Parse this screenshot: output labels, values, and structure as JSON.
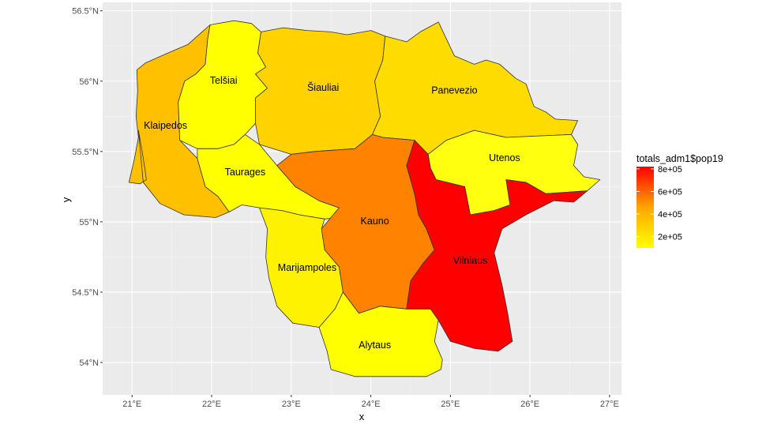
{
  "chart_data": {
    "type": "choropleth",
    "xlabel": "x",
    "ylabel": "y",
    "xlim": [
      20.63,
      27.15
    ],
    "ylim": [
      53.77,
      56.56
    ],
    "x_ticks": [
      {
        "value": 21,
        "label": "21°E"
      },
      {
        "value": 22,
        "label": "22°E"
      },
      {
        "value": 23,
        "label": "23°E"
      },
      {
        "value": 24,
        "label": "24°E"
      },
      {
        "value": 25,
        "label": "25°E"
      },
      {
        "value": 26,
        "label": "26°E"
      },
      {
        "value": 27,
        "label": "27°E"
      }
    ],
    "y_ticks": [
      {
        "value": 54.0,
        "label": "54°N"
      },
      {
        "value": 54.5,
        "label": "54.5°N"
      },
      {
        "value": 55.0,
        "label": "55°N"
      },
      {
        "value": 55.5,
        "label": "55.5°N"
      },
      {
        "value": 56.0,
        "label": "56°N"
      },
      {
        "value": 56.5,
        "label": "56.5°N"
      }
    ],
    "grid": true,
    "legend": {
      "title": "totals_adm1$pop19",
      "placement": "right",
      "min": 100000,
      "max": 820000,
      "colors": [
        "#ffff00",
        "#ffa500",
        "#ff0000"
      ],
      "ticks": [
        {
          "value": 200000,
          "label": "2e+05"
        },
        {
          "value": 400000,
          "label": "4e+05"
        },
        {
          "value": 600000,
          "label": "6e+05"
        },
        {
          "value": 800000,
          "label": "8e+05"
        }
      ]
    },
    "regions": [
      {
        "name": "Klaipedos",
        "fill": "#FFC000",
        "label_lon": 21.42,
        "label_lat": 55.68,
        "boundary": [
          [
            21.08,
            55.65
          ],
          [
            21.12,
            55.52
          ],
          [
            21.16,
            55.38
          ],
          [
            21.18,
            55.3
          ],
          [
            21.1,
            55.27
          ],
          [
            20.96,
            55.28
          ],
          [
            21.03,
            55.45
          ],
          [
            21.08,
            55.6
          ],
          [
            21.05,
            55.75
          ],
          [
            21.07,
            55.93
          ],
          [
            21.06,
            56.08
          ],
          [
            21.17,
            56.13
          ],
          [
            21.45,
            56.2
          ],
          [
            21.7,
            56.26
          ],
          [
            21.98,
            56.4
          ],
          [
            21.95,
            56.3
          ],
          [
            21.92,
            56.12
          ],
          [
            21.8,
            56.05
          ],
          [
            21.66,
            56.0
          ],
          [
            21.58,
            55.85
          ],
          [
            21.6,
            55.58
          ],
          [
            21.82,
            55.45
          ],
          [
            21.92,
            55.25
          ],
          [
            22.08,
            55.18
          ],
          [
            22.22,
            55.07
          ],
          [
            22.05,
            55.03
          ],
          [
            21.65,
            55.05
          ],
          [
            21.35,
            55.13
          ],
          [
            21.14,
            55.28
          ],
          [
            21.08,
            55.65
          ]
        ]
      },
      {
        "name": "Telšiai",
        "fill": "#FFFF00",
        "label_lon": 22.15,
        "label_lat": 56.0,
        "boundary": [
          [
            21.98,
            56.4
          ],
          [
            22.28,
            56.43
          ],
          [
            22.5,
            56.41
          ],
          [
            22.62,
            56.35
          ],
          [
            22.58,
            56.2
          ],
          [
            22.68,
            56.1
          ],
          [
            22.55,
            56.05
          ],
          [
            22.7,
            55.95
          ],
          [
            22.55,
            55.88
          ],
          [
            22.55,
            55.7
          ],
          [
            22.42,
            55.62
          ],
          [
            22.28,
            55.55
          ],
          [
            22.08,
            55.52
          ],
          [
            21.82,
            55.52
          ],
          [
            21.6,
            55.58
          ],
          [
            21.58,
            55.85
          ],
          [
            21.66,
            56.0
          ],
          [
            21.8,
            56.05
          ],
          [
            21.92,
            56.12
          ],
          [
            21.95,
            56.3
          ],
          [
            21.98,
            56.4
          ]
        ]
      },
      {
        "name": "Šiauliai",
        "fill": "#FFD200",
        "label_lon": 23.4,
        "label_lat": 55.95,
        "boundary": [
          [
            22.62,
            56.35
          ],
          [
            22.9,
            56.38
          ],
          [
            23.2,
            56.36
          ],
          [
            23.5,
            56.35
          ],
          [
            23.7,
            56.33
          ],
          [
            24.0,
            56.36
          ],
          [
            24.18,
            56.32
          ],
          [
            24.15,
            56.15
          ],
          [
            24.05,
            56.0
          ],
          [
            24.12,
            55.75
          ],
          [
            24.02,
            55.62
          ],
          [
            23.8,
            55.52
          ],
          [
            23.3,
            55.5
          ],
          [
            23.0,
            55.48
          ],
          [
            22.6,
            55.55
          ],
          [
            22.55,
            55.7
          ],
          [
            22.55,
            55.88
          ],
          [
            22.7,
            55.95
          ],
          [
            22.55,
            56.05
          ],
          [
            22.68,
            56.1
          ],
          [
            22.58,
            56.2
          ],
          [
            22.62,
            56.35
          ]
        ]
      },
      {
        "name": "Panevezio",
        "fill": "#FFDC00",
        "label_lon": 25.05,
        "label_lat": 55.93,
        "boundary": [
          [
            24.18,
            56.32
          ],
          [
            24.45,
            56.28
          ],
          [
            24.62,
            56.35
          ],
          [
            24.85,
            56.42
          ],
          [
            25.05,
            56.18
          ],
          [
            25.3,
            56.12
          ],
          [
            25.45,
            56.15
          ],
          [
            25.62,
            56.12
          ],
          [
            25.82,
            56.02
          ],
          [
            25.95,
            55.98
          ],
          [
            26.05,
            55.82
          ],
          [
            26.2,
            55.78
          ],
          [
            26.32,
            55.73
          ],
          [
            26.6,
            55.72
          ],
          [
            26.52,
            55.62
          ],
          [
            25.7,
            55.6
          ],
          [
            25.3,
            55.65
          ],
          [
            24.95,
            55.58
          ],
          [
            24.72,
            55.48
          ],
          [
            24.55,
            55.58
          ],
          [
            24.15,
            55.6
          ],
          [
            24.02,
            55.62
          ],
          [
            24.12,
            55.75
          ],
          [
            24.05,
            56.0
          ],
          [
            24.15,
            56.15
          ],
          [
            24.18,
            56.32
          ]
        ]
      },
      {
        "name": "Utenos",
        "fill": "#FFFF10",
        "label_lon": 25.68,
        "label_lat": 55.45,
        "boundary": [
          [
            24.72,
            55.48
          ],
          [
            24.95,
            55.58
          ],
          [
            25.3,
            55.65
          ],
          [
            25.7,
            55.6
          ],
          [
            26.52,
            55.62
          ],
          [
            26.6,
            55.55
          ],
          [
            26.55,
            55.4
          ],
          [
            26.68,
            55.32
          ],
          [
            26.88,
            55.3
          ],
          [
            26.72,
            55.22
          ],
          [
            26.2,
            55.2
          ],
          [
            25.95,
            55.28
          ],
          [
            25.7,
            55.3
          ],
          [
            25.75,
            55.12
          ],
          [
            25.55,
            55.08
          ],
          [
            25.25,
            55.05
          ],
          [
            25.18,
            55.25
          ],
          [
            24.82,
            55.3
          ],
          [
            24.75,
            55.38
          ],
          [
            24.72,
            55.48
          ]
        ]
      },
      {
        "name": "Taurages",
        "fill": "#FFFF00",
        "label_lon": 22.42,
        "label_lat": 55.35,
        "boundary": [
          [
            21.82,
            55.52
          ],
          [
            22.08,
            55.52
          ],
          [
            22.28,
            55.55
          ],
          [
            22.42,
            55.62
          ],
          [
            22.6,
            55.55
          ],
          [
            22.82,
            55.4
          ],
          [
            23.05,
            55.25
          ],
          [
            23.35,
            55.15
          ],
          [
            23.6,
            55.1
          ],
          [
            23.95,
            55.05
          ],
          [
            23.42,
            55.02
          ],
          [
            23.1,
            55.05
          ],
          [
            22.88,
            55.08
          ],
          [
            22.6,
            55.1
          ],
          [
            22.38,
            55.12
          ],
          [
            22.22,
            55.07
          ],
          [
            22.08,
            55.18
          ],
          [
            21.92,
            55.25
          ],
          [
            21.82,
            55.45
          ],
          [
            21.82,
            55.52
          ]
        ]
      },
      {
        "name": "Kauno",
        "fill": "#FF8200",
        "label_lon": 24.05,
        "label_lat": 55.0,
        "boundary": [
          [
            22.82,
            55.4
          ],
          [
            23.0,
            55.48
          ],
          [
            23.3,
            55.5
          ],
          [
            23.8,
            55.52
          ],
          [
            24.02,
            55.62
          ],
          [
            24.15,
            55.6
          ],
          [
            24.55,
            55.58
          ],
          [
            24.45,
            55.4
          ],
          [
            24.55,
            55.2
          ],
          [
            24.6,
            55.05
          ],
          [
            24.7,
            54.95
          ],
          [
            24.8,
            54.8
          ],
          [
            24.65,
            54.7
          ],
          [
            24.5,
            54.58
          ],
          [
            24.45,
            54.38
          ],
          [
            24.12,
            54.4
          ],
          [
            23.85,
            54.35
          ],
          [
            23.65,
            54.5
          ],
          [
            23.6,
            54.68
          ],
          [
            23.42,
            54.8
          ],
          [
            23.38,
            54.95
          ],
          [
            23.6,
            55.1
          ],
          [
            23.35,
            55.15
          ],
          [
            23.05,
            55.25
          ],
          [
            22.82,
            55.4
          ]
        ]
      },
      {
        "name": "Marijampoles",
        "fill": "#FFF200",
        "label_lon": 23.2,
        "label_lat": 54.67,
        "boundary": [
          [
            22.6,
            55.1
          ],
          [
            22.88,
            55.08
          ],
          [
            23.1,
            55.05
          ],
          [
            23.42,
            55.02
          ],
          [
            23.38,
            54.95
          ],
          [
            23.42,
            54.8
          ],
          [
            23.6,
            54.68
          ],
          [
            23.65,
            54.5
          ],
          [
            23.55,
            54.38
          ],
          [
            23.35,
            54.25
          ],
          [
            23.02,
            54.28
          ],
          [
            22.82,
            54.4
          ],
          [
            22.72,
            54.6
          ],
          [
            22.68,
            54.75
          ],
          [
            22.7,
            54.95
          ],
          [
            22.6,
            55.1
          ]
        ]
      },
      {
        "name": "Vilniaus",
        "fill": "#FF0000",
        "label_lon": 25.25,
        "label_lat": 54.72,
        "boundary": [
          [
            24.55,
            55.58
          ],
          [
            24.72,
            55.48
          ],
          [
            24.75,
            55.38
          ],
          [
            24.82,
            55.3
          ],
          [
            25.18,
            55.25
          ],
          [
            25.25,
            55.05
          ],
          [
            25.55,
            55.08
          ],
          [
            25.75,
            55.12
          ],
          [
            25.7,
            55.3
          ],
          [
            25.95,
            55.28
          ],
          [
            26.2,
            55.2
          ],
          [
            26.72,
            55.22
          ],
          [
            26.55,
            55.14
          ],
          [
            26.3,
            55.15
          ],
          [
            25.95,
            55.05
          ],
          [
            25.65,
            54.95
          ],
          [
            25.55,
            54.78
          ],
          [
            25.65,
            54.55
          ],
          [
            25.72,
            54.35
          ],
          [
            25.78,
            54.15
          ],
          [
            25.6,
            54.08
          ],
          [
            25.3,
            54.1
          ],
          [
            25.0,
            54.15
          ],
          [
            24.85,
            54.3
          ],
          [
            24.75,
            54.38
          ],
          [
            24.5,
            54.38
          ],
          [
            24.45,
            54.38
          ],
          [
            24.5,
            54.58
          ],
          [
            24.65,
            54.7
          ],
          [
            24.8,
            54.8
          ],
          [
            24.7,
            54.95
          ],
          [
            24.6,
            55.05
          ],
          [
            24.55,
            55.2
          ],
          [
            24.45,
            55.4
          ],
          [
            24.55,
            55.58
          ]
        ]
      },
      {
        "name": "Alytaus",
        "fill": "#FFFF00",
        "label_lon": 24.05,
        "label_lat": 54.12,
        "boundary": [
          [
            23.35,
            54.25
          ],
          [
            23.55,
            54.38
          ],
          [
            23.65,
            54.5
          ],
          [
            23.85,
            54.35
          ],
          [
            24.12,
            54.4
          ],
          [
            24.45,
            54.38
          ],
          [
            24.75,
            54.38
          ],
          [
            24.85,
            54.3
          ],
          [
            24.8,
            54.15
          ],
          [
            24.9,
            54.02
          ],
          [
            24.88,
            53.95
          ],
          [
            24.7,
            53.9
          ],
          [
            24.45,
            53.9
          ],
          [
            24.2,
            53.9
          ],
          [
            23.8,
            53.9
          ],
          [
            23.5,
            53.95
          ],
          [
            23.45,
            54.08
          ],
          [
            23.35,
            54.25
          ]
        ]
      }
    ]
  }
}
